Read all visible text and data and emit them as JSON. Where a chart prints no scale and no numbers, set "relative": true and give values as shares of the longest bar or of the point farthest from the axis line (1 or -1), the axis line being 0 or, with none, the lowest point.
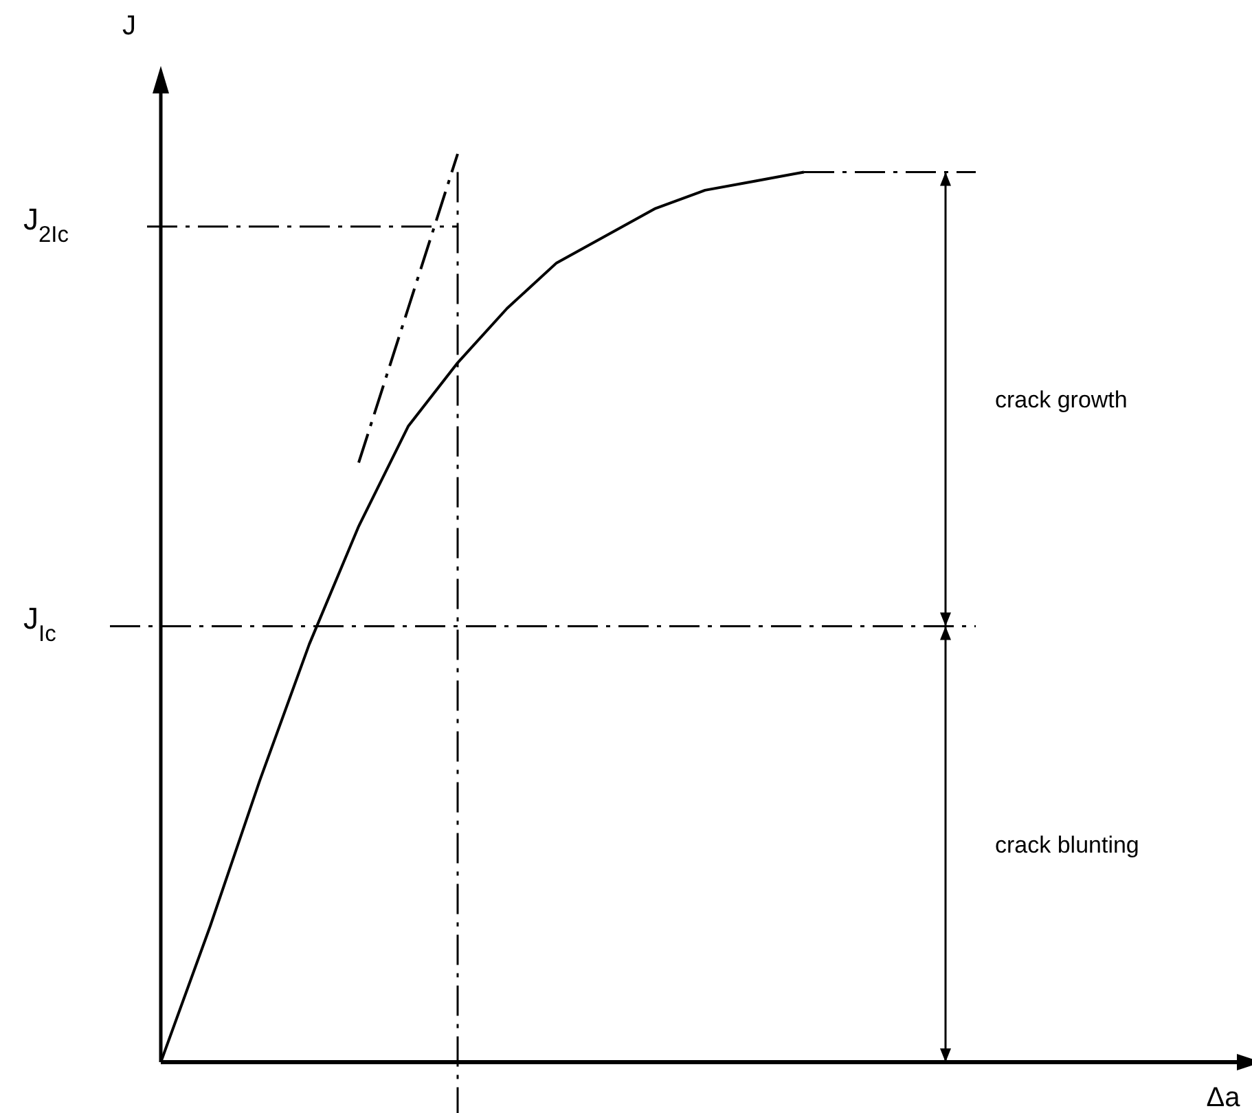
{
  "chart_data": {
    "type": "line",
    "relative": true,
    "ylabel": "J",
    "xlabel": "Δa",
    "categories": [
      null,
      null,
      null,
      null,
      null,
      null,
      null,
      null,
      null,
      null,
      null,
      null,
      null,
      null,
      null,
      null,
      null,
      null,
      null,
      null,
      null,
      null,
      null
    ],
    "series": [
      {
        "color": "#000000",
        "line_style": "solid",
        "values": [
          0,
          0.15,
          0.31,
          0.46,
          0.59,
          0.7,
          0.77,
          0.83,
          0.88,
          0.91,
          0.94,
          0.96,
          0.97,
          0.98,
          null,
          null,
          null,
          null,
          null,
          null,
          null,
          null,
          null
        ]
      },
      {
        "color": "#000000",
        "line_style": "dashed",
        "values": [
          null,
          null,
          null,
          null,
          0.66,
          0.83,
          1,
          null,
          null,
          null,
          null,
          null,
          null,
          null,
          null,
          null,
          null,
          null,
          null,
          null,
          null,
          null,
          null
        ]
      }
    ],
    "ref_lines": [
      {
        "axis": "y",
        "value": 0.92,
        "label": "J$_{2Ic}$",
        "line_style": "dashed"
      },
      {
        "axis": "y",
        "value": 0.48,
        "label": "J$_{Ic}$",
        "line_style": "dashed"
      },
      {
        "axis": "y",
        "value": 0.98,
        "label": null,
        "line_style": "dashed"
      }
    ],
    "annotations": [
      "crack growth",
      "crack blunting"
    ]
  }
}
